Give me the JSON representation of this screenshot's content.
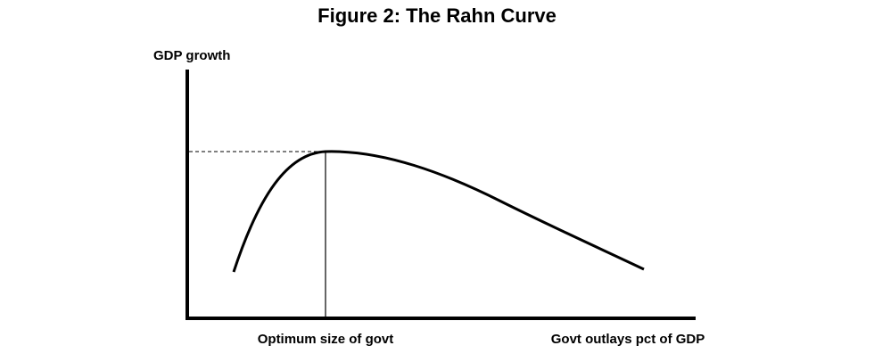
{
  "title": "Figure 2:  The Rahn Curve",
  "y_axis_label": "GDP growth",
  "x_axis_label": "Govt outlays pct of GDP",
  "annotation": "Optimum size of govt"
}
